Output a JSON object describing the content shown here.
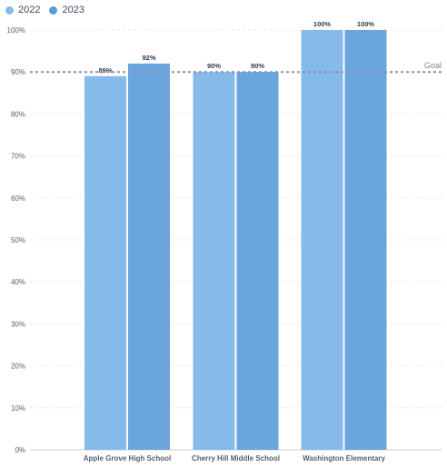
{
  "legend": [
    {
      "label": "2022",
      "color": "#86baea"
    },
    {
      "label": "2023",
      "color": "#5b9ad9"
    }
  ],
  "chart_data": {
    "type": "bar",
    "categories": [
      "Apple Grove High School",
      "Cherry Hill Middle School",
      "Washington Elementary"
    ],
    "series": [
      {
        "name": "2022",
        "values": [
          89,
          90,
          100
        ],
        "labels": [
          "89%",
          "90%",
          "100%"
        ],
        "color": "#86baea"
      },
      {
        "name": "2023",
        "values": [
          92,
          90,
          100
        ],
        "labels": [
          "92%",
          "90%",
          "100%"
        ],
        "color": "#6aa5de"
      }
    ],
    "ylim": [
      0,
      100
    ],
    "yticks": [
      "0%",
      "10%",
      "20%",
      "30%",
      "40%",
      "50%",
      "60%",
      "70%",
      "80%",
      "90%",
      "100%"
    ],
    "goal": {
      "value": 90,
      "label": "Goal"
    },
    "grid": true,
    "legend_position": "top-left"
  }
}
